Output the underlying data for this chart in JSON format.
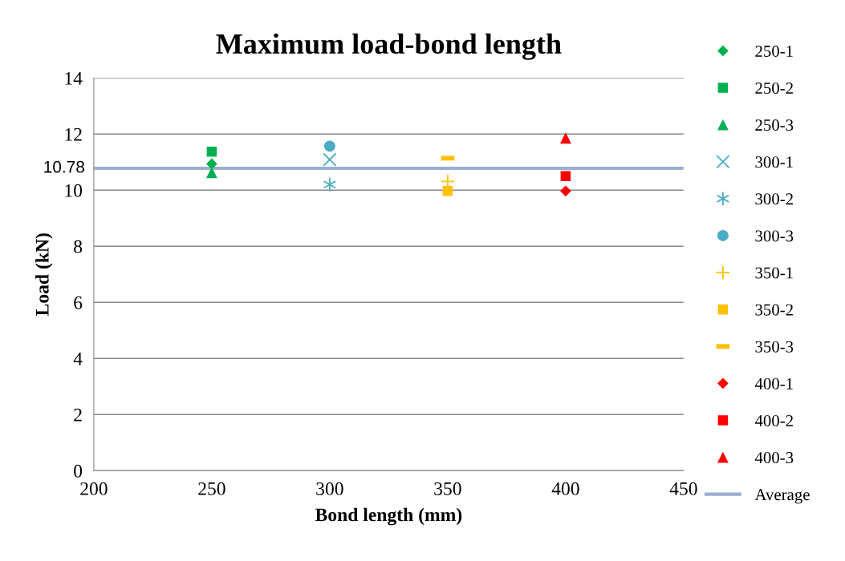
{
  "chart_data": {
    "type": "scatter",
    "title": "Maximum load-bond length",
    "xlabel": "Bond length (mm)",
    "ylabel": "Load (kN)",
    "xlim": [
      200,
      450
    ],
    "xticks": [
      200,
      250,
      300,
      350,
      400,
      450
    ],
    "ylim": [
      0,
      14
    ],
    "yticks": [
      0,
      2,
      4,
      6,
      8,
      10,
      12,
      14
    ],
    "grid": "y",
    "legend": "right",
    "series": [
      {
        "name": "250-1",
        "color": "#00b050",
        "marker": "diamond",
        "x": [
          250
        ],
        "values": [
          10.94
        ]
      },
      {
        "name": "250-2",
        "color": "#00b050",
        "marker": "square",
        "x": [
          250
        ],
        "values": [
          11.37
        ]
      },
      {
        "name": "250-3",
        "color": "#00b050",
        "marker": "triangle",
        "x": [
          250
        ],
        "values": [
          10.63
        ]
      },
      {
        "name": "300-1",
        "color": "#4bacc6",
        "marker": "cross",
        "x": [
          300
        ],
        "values": [
          11.09
        ]
      },
      {
        "name": "300-2",
        "color": "#4bacc6",
        "marker": "cross",
        "x": [
          300
        ],
        "values": [
          10.2
        ]
      },
      {
        "name": "300-3",
        "color": "#4bacc6",
        "marker": "circle",
        "x": [
          300
        ],
        "values": [
          11.57
        ]
      },
      {
        "name": "350-1",
        "color": "#ffc000",
        "marker": "plus",
        "x": [
          350
        ],
        "values": [
          10.31
        ]
      },
      {
        "name": "350-2",
        "color": "#ffc000",
        "marker": "square",
        "x": [
          350
        ],
        "values": [
          9.97
        ]
      },
      {
        "name": "350-3",
        "color": "#ffc000",
        "marker": "square",
        "x": [
          350
        ],
        "values": [
          11.14
        ]
      },
      {
        "name": "400-1",
        "color": "#ff0000",
        "marker": "diamond",
        "x": [
          400
        ],
        "values": [
          9.97
        ]
      },
      {
        "name": "400-2",
        "color": "#ff0000",
        "marker": "square",
        "x": [
          400
        ],
        "values": [
          10.5
        ]
      },
      {
        "name": "400-3",
        "color": "#ff0000",
        "marker": "triangle",
        "x": [
          400
        ],
        "values": [
          11.86
        ]
      }
    ],
    "ref_lines": [
      {
        "axis": "y",
        "value": 10.78,
        "label": "Average",
        "color": "#9bafd0",
        "line_style": "solid"
      }
    ],
    "annotations": [
      "10.78"
    ]
  }
}
